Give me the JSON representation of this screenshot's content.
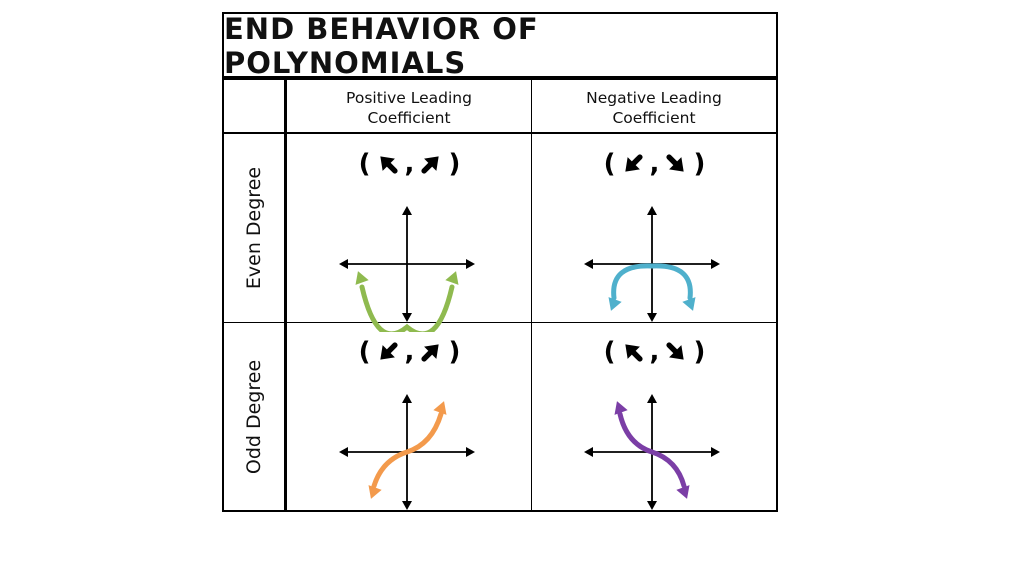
{
  "title": "END BEHAVIOR OF POLYNOMIALS",
  "columns": [
    {
      "line1": "Positive Leading",
      "line2": "Coefficient"
    },
    {
      "line1": "Negative Leading",
      "line2": "Coefficient"
    }
  ],
  "rows": [
    {
      "label": "Even Degree"
    },
    {
      "label": "Odd Degree"
    }
  ],
  "cells": [
    {
      "row": 0,
      "col": 0,
      "left_arrow": "up-left",
      "right_arrow": "up-right",
      "curve": "even-up",
      "color": "#8fba4f"
    },
    {
      "row": 0,
      "col": 1,
      "left_arrow": "down-left",
      "right_arrow": "down-right",
      "curve": "even-down",
      "color": "#4fb0cc"
    },
    {
      "row": 1,
      "col": 0,
      "left_arrow": "down-left",
      "right_arrow": "up-right",
      "curve": "odd-up",
      "color": "#f39a4c"
    },
    {
      "row": 1,
      "col": 1,
      "left_arrow": "up-left",
      "right_arrow": "down-right",
      "curve": "odd-down",
      "color": "#7b3ea6"
    }
  ]
}
